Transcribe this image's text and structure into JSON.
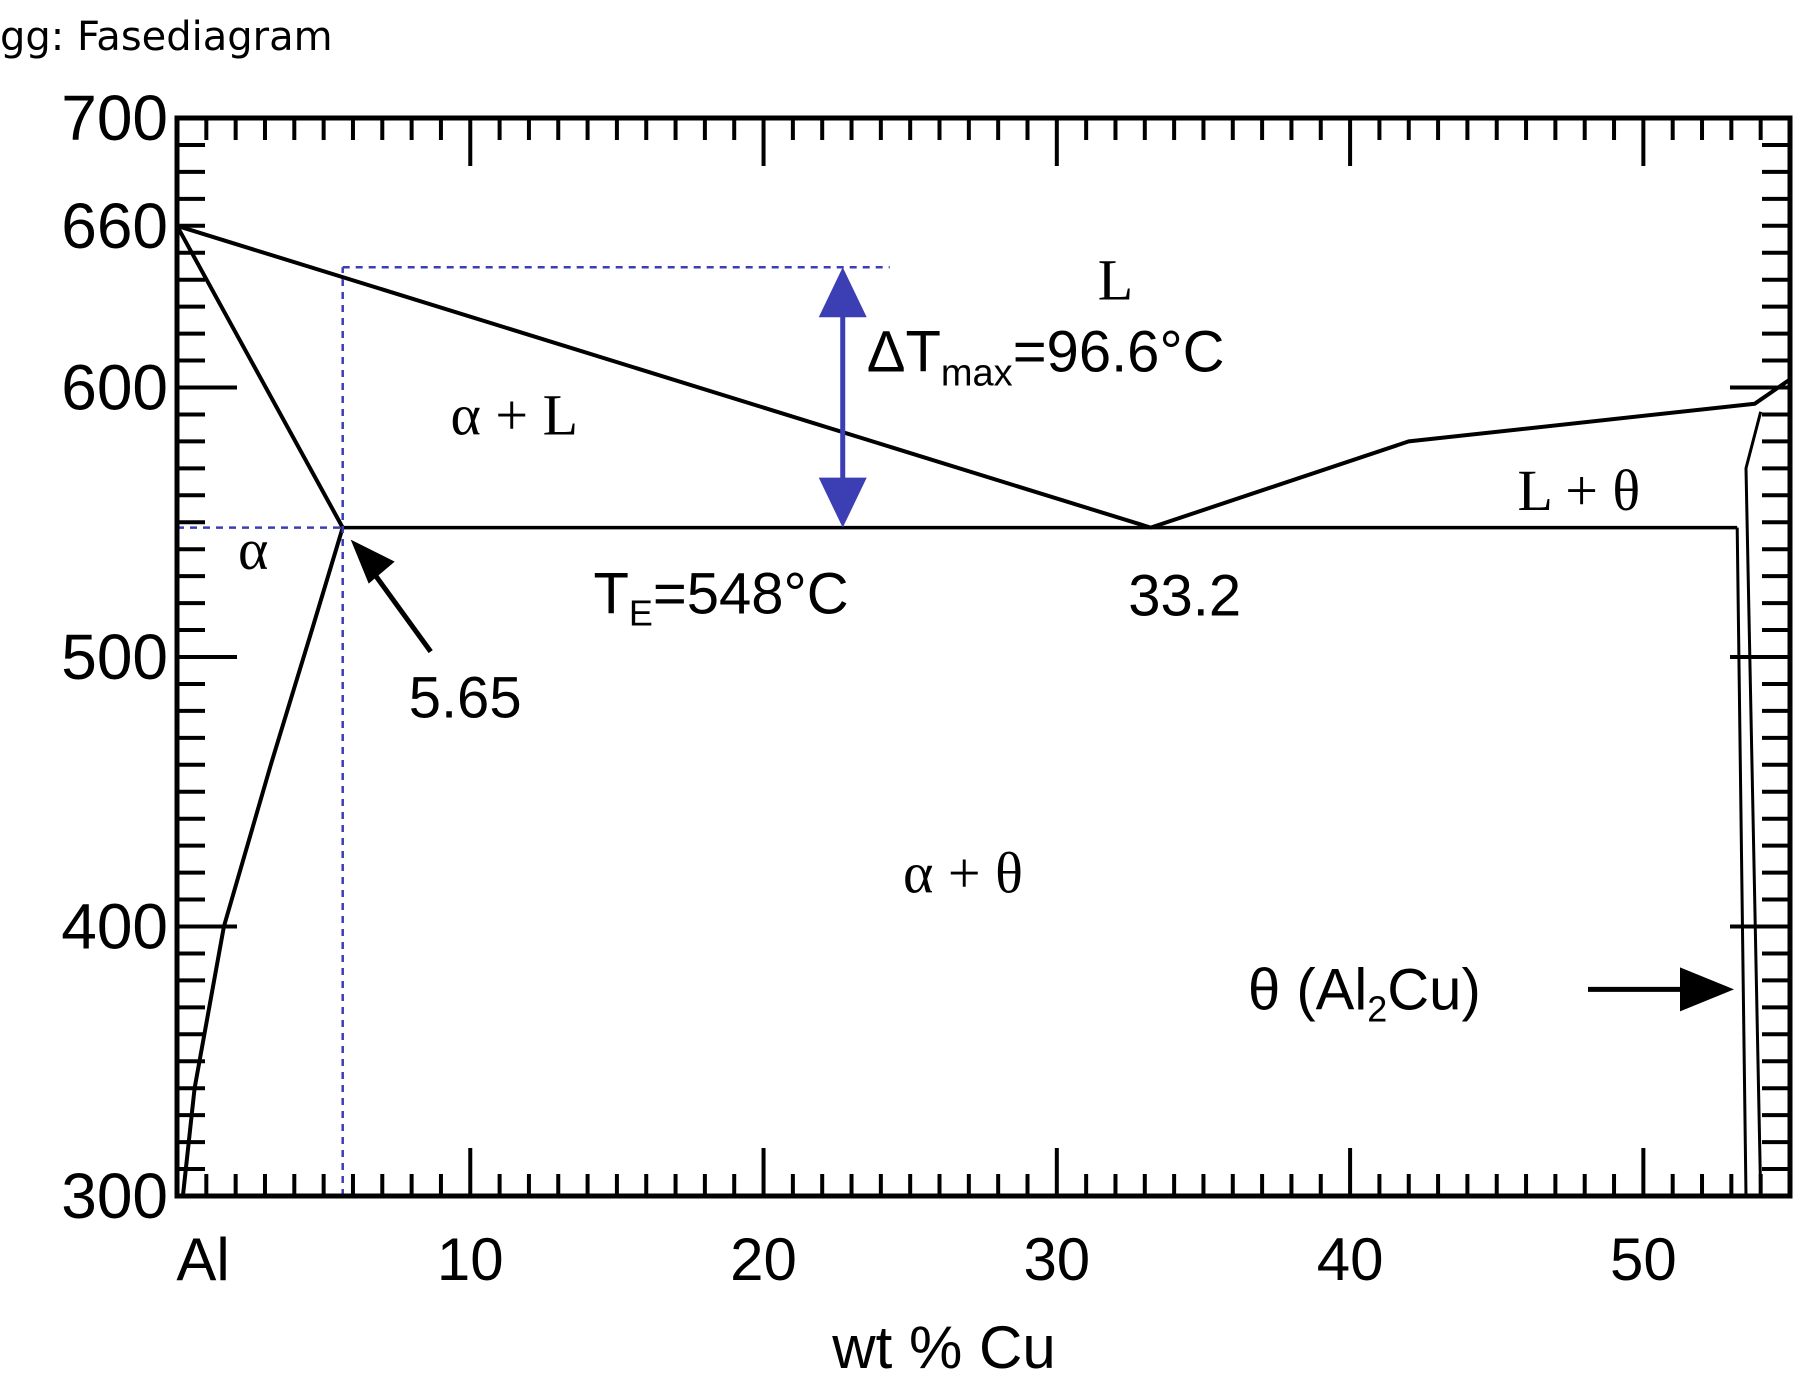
{
  "header": {
    "title": "gg: Fasediagram"
  },
  "chart_data": {
    "type": "phase-diagram",
    "xlabel": "wt % Cu",
    "ylabel": "",
    "xlim": [
      0,
      55
    ],
    "ylim": [
      300,
      700
    ],
    "x_ticks": [
      {
        "value": 0,
        "label": "Al"
      },
      {
        "value": 10,
        "label": "10"
      },
      {
        "value": 20,
        "label": "20"
      },
      {
        "value": 30,
        "label": "30"
      },
      {
        "value": 40,
        "label": "40"
      },
      {
        "value": 50,
        "label": "50"
      }
    ],
    "y_ticks": [
      {
        "value": 300,
        "label": "300"
      },
      {
        "value": 400,
        "label": "400"
      },
      {
        "value": 500,
        "label": "500"
      },
      {
        "value": 600,
        "label": "600"
      },
      {
        "value": 660,
        "label": "660"
      },
      {
        "value": 700,
        "label": "700"
      }
    ],
    "region_labels": [
      {
        "text": "L",
        "x": 32,
        "y": 640
      },
      {
        "text": "α + L",
        "x": 11.5,
        "y": 590
      },
      {
        "text": "α",
        "x": 2.6,
        "y": 540
      },
      {
        "text": "L + θ",
        "x": 47.8,
        "y": 562
      },
      {
        "text": "α + θ",
        "x": 26.8,
        "y": 420
      }
    ],
    "lines": {
      "liquidus_left": [
        [
          0,
          660
        ],
        [
          33.2,
          548
        ]
      ],
      "liquidus_right": [
        [
          33.2,
          548
        ],
        [
          42,
          580
        ],
        [
          53.8,
          594
        ],
        [
          55,
          603
        ]
      ],
      "solidus_alpha": [
        [
          0,
          660
        ],
        [
          5.65,
          548
        ]
      ],
      "solvus_alpha": [
        [
          5.65,
          548
        ],
        [
          4.6,
          510
        ],
        [
          3.2,
          460
        ],
        [
          1.6,
          400
        ],
        [
          0.6,
          340
        ],
        [
          0.2,
          300
        ]
      ],
      "eutectic": [
        [
          5.65,
          548
        ],
        [
          53.2,
          548
        ]
      ],
      "theta_left": [
        [
          53.2,
          548
        ],
        [
          53.5,
          300
        ]
      ],
      "theta_right": [
        [
          54,
          591
        ],
        [
          53.5,
          570
        ],
        [
          54,
          300
        ]
      ],
      "dashed_vertical": [
        [
          5.65,
          300
        ],
        [
          5.65,
          644.6
        ]
      ],
      "dashed_horizontal_eutectic": [
        [
          0,
          548
        ],
        [
          5.65,
          548
        ]
      ],
      "dashed_horizontal_top": [
        [
          5.65,
          644.6
        ],
        [
          24.3,
          644.6
        ]
      ],
      "delta_arrow": [
        [
          22.7,
          548
        ],
        [
          22.7,
          644.6
        ]
      ]
    },
    "annotations": [
      {
        "text": "5.65",
        "x": 5.65,
        "y": 548,
        "arrow": true
      },
      {
        "text": "33.2",
        "x": 33.2,
        "y": 548
      },
      {
        "text_main": "T",
        "sub": "E",
        "text_rest": "=548°C",
        "value": 548
      },
      {
        "text_main": "ΔT",
        "sub": "max",
        "text_rest": "=96.6°C",
        "value": 96.6,
        "color": "#3b3fb3"
      },
      {
        "text_main": "θ (Al",
        "sub": "2",
        "text_rest": "Cu)",
        "x": 53.5,
        "y": 370,
        "arrow": true
      }
    ],
    "colors": {
      "line": "#000000",
      "accent": "#3b3fb3"
    },
    "grid": false
  }
}
